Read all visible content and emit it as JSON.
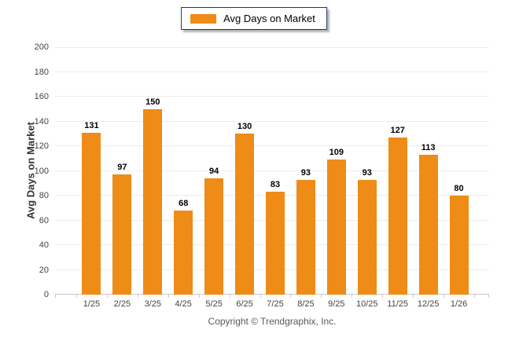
{
  "legend": {
    "label": "Avg Days on Market",
    "swatch_color": "#EF8B17"
  },
  "footer": {
    "copyright": "Copyright © Trendgraphix, Inc."
  },
  "colors": {
    "bar": "#EF8B17",
    "legend_border": "#17375E",
    "gridline": "#ECECEC",
    "axis_line": "#C8C8C8",
    "value_label": "#000000",
    "tick_label": "#444444",
    "copyright_text": "#595959"
  },
  "chart_data": {
    "type": "bar",
    "title": "",
    "series_name": "Avg Days on Market",
    "categories": [
      "1/25",
      "2/25",
      "3/25",
      "4/25",
      "5/25",
      "6/25",
      "7/25",
      "8/25",
      "9/25",
      "10/25",
      "11/25",
      "12/25",
      "1/26"
    ],
    "values": [
      131,
      97,
      150,
      68,
      94,
      130,
      83,
      93,
      109,
      93,
      127,
      113,
      80
    ],
    "xlabel": "",
    "ylabel": "Avg Days on Market",
    "ylim": [
      0,
      200
    ],
    "ytick_step": 20,
    "yticks": [
      0,
      20,
      40,
      60,
      80,
      100,
      120,
      140,
      160,
      180,
      200
    ],
    "grid": true,
    "legend_position": "top-center",
    "value_labels": true,
    "bar_color": "#EF8B17"
  }
}
